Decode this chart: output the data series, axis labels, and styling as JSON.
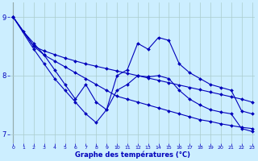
{
  "background_color": "#cceeff",
  "grid_color": "#aacccc",
  "line_color": "#0000bb",
  "title": "Graphe des températures (°C)",
  "xlim": [
    -0.3,
    23.3
  ],
  "ylim": [
    6.85,
    9.25
  ],
  "yticks": [
    7,
    8,
    9
  ],
  "xticks": [
    0,
    1,
    2,
    3,
    4,
    5,
    6,
    7,
    8,
    9,
    10,
    11,
    12,
    13,
    14,
    15,
    16,
    17,
    18,
    19,
    20,
    21,
    22,
    23
  ],
  "series": [
    {
      "x": [
        0,
        1,
        2,
        3,
        4,
        5,
        6,
        7,
        8,
        9,
        10,
        11,
        12,
        13,
        14,
        15,
        16,
        17,
        18,
        19,
        20,
        21,
        22,
        23
      ],
      "y": [
        9.0,
        8.75,
        8.55,
        8.35,
        8.25,
        8.15,
        8.05,
        7.95,
        7.85,
        7.75,
        7.65,
        7.6,
        7.55,
        7.5,
        7.45,
        7.4,
        7.35,
        7.3,
        7.25,
        7.22,
        7.18,
        7.15,
        7.12,
        7.1
      ]
    },
    {
      "x": [
        0,
        2,
        3,
        4,
        5,
        6,
        7,
        8,
        9,
        10,
        11,
        12,
        13,
        14,
        15,
        16,
        17,
        18,
        19,
        20,
        21,
        22,
        23
      ],
      "y": [
        9.0,
        8.5,
        8.42,
        8.36,
        8.3,
        8.25,
        8.2,
        8.16,
        8.12,
        8.08,
        8.04,
        8.0,
        7.96,
        7.92,
        7.88,
        7.84,
        7.8,
        7.76,
        7.72,
        7.68,
        7.64,
        7.6,
        7.55
      ]
    },
    {
      "x": [
        0,
        2,
        3,
        4,
        5,
        6,
        7,
        8,
        9,
        10,
        11,
        12,
        13,
        14,
        15,
        16,
        17,
        18,
        19,
        20,
        21,
        22,
        23
      ],
      "y": [
        9.0,
        8.5,
        8.35,
        8.1,
        7.85,
        7.6,
        7.85,
        7.55,
        7.42,
        8.0,
        8.1,
        8.55,
        8.45,
        8.65,
        8.6,
        8.2,
        8.05,
        7.95,
        7.85,
        7.8,
        7.75,
        7.4,
        7.35
      ]
    },
    {
      "x": [
        0,
        2,
        3,
        4,
        5,
        6,
        7,
        8,
        9,
        10,
        11,
        12,
        13,
        14,
        15,
        16,
        17,
        18,
        19,
        20,
        21,
        22,
        23
      ],
      "y": [
        9.0,
        8.45,
        8.2,
        7.95,
        7.75,
        7.55,
        7.35,
        7.2,
        7.42,
        7.75,
        7.85,
        8.0,
        7.98,
        8.0,
        7.95,
        7.75,
        7.6,
        7.5,
        7.42,
        7.38,
        7.35,
        7.1,
        7.05
      ]
    }
  ]
}
